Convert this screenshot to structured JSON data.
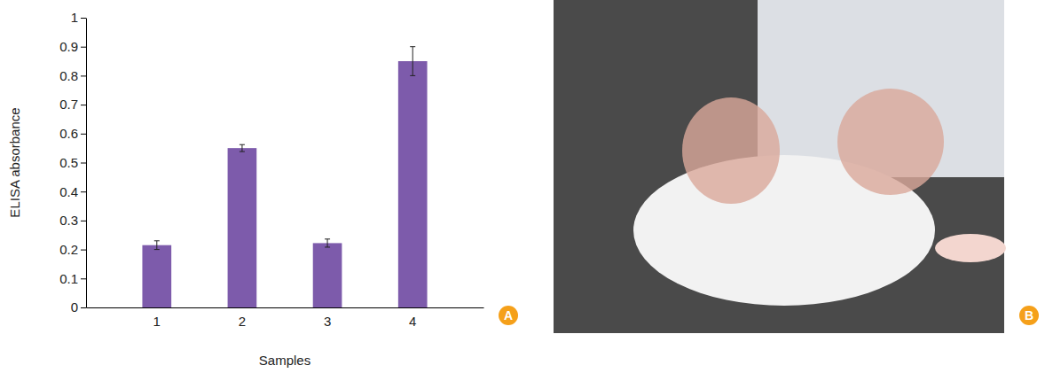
{
  "chart_data": {
    "type": "bar",
    "categories": [
      "1",
      "2",
      "3",
      "4"
    ],
    "values": [
      0.215,
      0.55,
      0.222,
      0.85
    ],
    "errors": [
      0.015,
      0.012,
      0.014,
      0.05
    ],
    "color": "#7d5bab",
    "x_label": "Samples",
    "y_label": "ELISA absorbance",
    "ylim": [
      0,
      1
    ],
    "yticks": [
      0,
      0.1,
      0.2,
      0.3,
      0.4,
      0.5,
      0.6,
      0.7,
      0.8,
      0.9,
      1
    ],
    "grid": false
  },
  "panel_labels": [
    "A",
    "B"
  ]
}
